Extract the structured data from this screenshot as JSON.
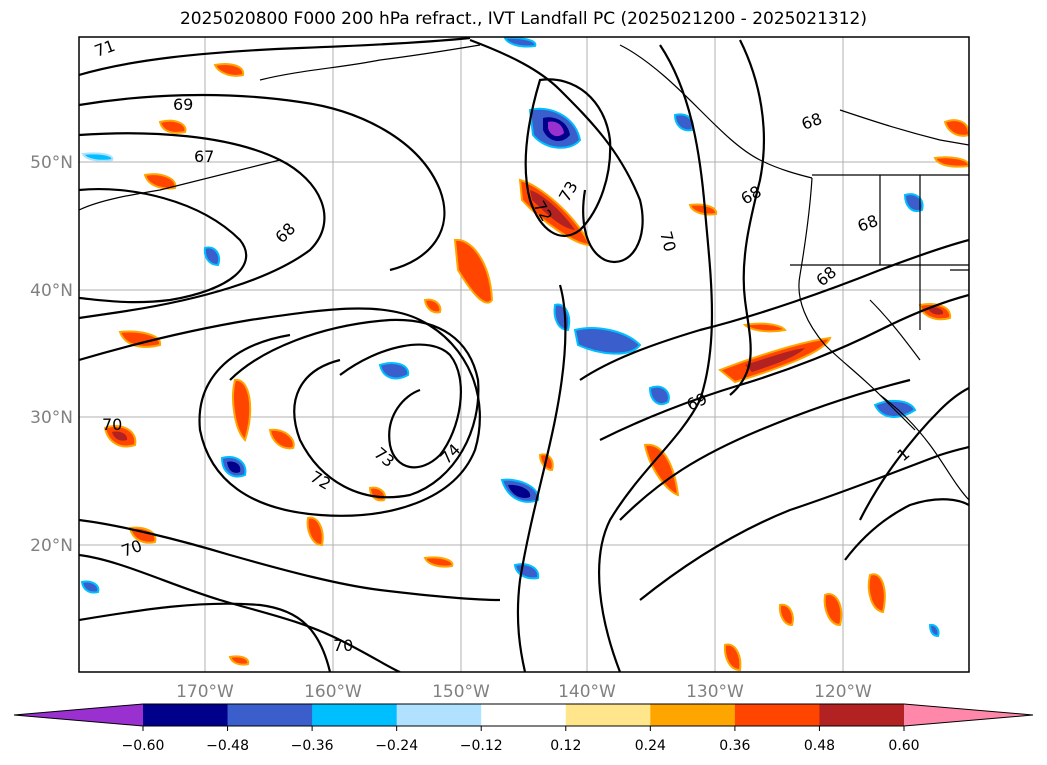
{
  "title": "2025020800 F000 200 hPa refract., IVT Landfall PC (2025021200 - 2025021312)",
  "map": {
    "lat_labels": [
      "50°N",
      "40°N",
      "30°N",
      "20°N"
    ],
    "lon_labels": [
      "170°W",
      "160°W",
      "150°W",
      "140°W",
      "130°W",
      "120°W"
    ],
    "contour_labels": [
      "71",
      "69",
      "67",
      "68",
      "72",
      "73",
      "70",
      "68",
      "68",
      "68",
      "68",
      "69",
      "70",
      "73",
      "74",
      "72",
      "70",
      "70",
      "1"
    ]
  },
  "colorbar": {
    "tick_labels": [
      "−0.60",
      "−0.48",
      "−0.36",
      "−0.24",
      "−0.12",
      "0.12",
      "0.24",
      "0.36",
      "0.48",
      "0.60"
    ],
    "colors": [
      "#9b30d0",
      "#00008b",
      "#3a5fcd",
      "#00bfff",
      "#b0e2ff",
      "#ffffff",
      "#ffe68c",
      "#ffa500",
      "#ff4500",
      "#b22222",
      "#ff88aa"
    ]
  },
  "colors": {
    "grid": "#b0b0b0",
    "contour": "#000000",
    "axis_label": "#808080"
  }
}
